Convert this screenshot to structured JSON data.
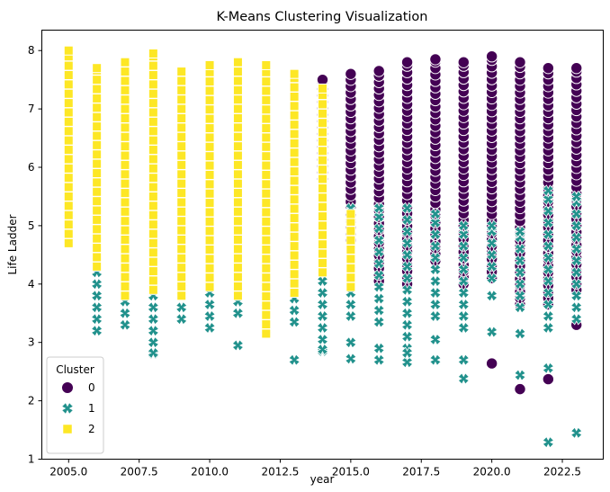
{
  "chart_data": {
    "type": "scatter",
    "title": "K-Means Clustering Visualization",
    "xlabel": "year",
    "ylabel": "Life Ladder",
    "xlim": [
      2004.05,
      2023.95
    ],
    "ylim": [
      1.0,
      8.35
    ],
    "xticks": [
      2005.0,
      2007.5,
      2010.0,
      2012.5,
      2015.0,
      2017.5,
      2020.0,
      2022.5
    ],
    "xtick_labels": [
      "2005.0",
      "2007.5",
      "2010.0",
      "2012.5",
      "2015.0",
      "2017.5",
      "2020.0",
      "2022.5"
    ],
    "yticks": [
      1,
      2,
      3,
      4,
      5,
      6,
      7,
      8
    ],
    "ytick_labels": [
      "1",
      "2",
      "3",
      "4",
      "5",
      "6",
      "7",
      "8"
    ],
    "grid": false,
    "legend": {
      "title": "Cluster",
      "placement": "lower-left"
    },
    "series": [
      {
        "name": "0",
        "marker": "circle",
        "color": "#440154",
        "ranges": [
          {
            "x": 2014,
            "min": 5.8,
            "max": 7.5
          },
          {
            "x": 2015,
            "min": 4.75,
            "max": 7.6
          },
          {
            "x": 2016,
            "min": 4.05,
            "max": 7.65
          },
          {
            "x": 2017,
            "min": 4.0,
            "max": 7.8
          },
          {
            "x": 2018,
            "min": 4.4,
            "max": 7.85
          },
          {
            "x": 2019,
            "min": 4.0,
            "max": 7.8
          },
          {
            "x": 2020,
            "min": 4.1,
            "max": 7.9
          },
          {
            "x": 2021,
            "min": 3.65,
            "max": 7.8
          },
          {
            "x": 2022,
            "min": 3.65,
            "max": 7.7
          },
          {
            "x": 2023,
            "min": 3.9,
            "max": 7.7
          }
        ],
        "extra_points": [
          {
            "x": 2020,
            "y": 2.64
          },
          {
            "x": 2021,
            "y": 2.2
          },
          {
            "x": 2022,
            "y": 2.37
          },
          {
            "x": 2023,
            "y": 3.3
          }
        ]
      },
      {
        "name": "1",
        "marker": "x",
        "color": "#21918c",
        "ranges": [
          {
            "x": 2005,
            "min": 5.2,
            "max": 5.3
          },
          {
            "x": 2006,
            "min": 3.2,
            "max": 5.3
          },
          {
            "x": 2007,
            "min": 3.3,
            "max": 6.0
          },
          {
            "x": 2008,
            "min": 2.8,
            "max": 5.25
          },
          {
            "x": 2009,
            "min": 3.4,
            "max": 5.3
          },
          {
            "x": 2010,
            "min": 3.25,
            "max": 5.7
          },
          {
            "x": 2011,
            "min": 3.5,
            "max": 5.1
          },
          {
            "x": 2012,
            "min": 3.2,
            "max": 5.2
          },
          {
            "x": 2013,
            "min": 3.35,
            "max": 5.3
          },
          {
            "x": 2014,
            "min": 2.85,
            "max": 5.3
          },
          {
            "x": 2015,
            "min": 3.45,
            "max": 5.3
          },
          {
            "x": 2016,
            "min": 3.35,
            "max": 5.3
          },
          {
            "x": 2017,
            "min": 2.9,
            "max": 5.3
          },
          {
            "x": 2018,
            "min": 3.45,
            "max": 5.2
          },
          {
            "x": 2019,
            "min": 3.25,
            "max": 5.0
          },
          {
            "x": 2020,
            "min": 4.1,
            "max": 5.0
          },
          {
            "x": 2021,
            "min": 3.6,
            "max": 4.9
          },
          {
            "x": 2022,
            "min": 3.25,
            "max": 5.6
          },
          {
            "x": 2023,
            "min": 3.4,
            "max": 5.5
          }
        ],
        "extra_points": [
          {
            "x": 2008,
            "y": 2.82
          },
          {
            "x": 2011,
            "y": 2.95
          },
          {
            "x": 2013,
            "y": 2.7
          },
          {
            "x": 2014,
            "y": 2.88
          },
          {
            "x": 2015,
            "y": 2.72
          },
          {
            "x": 2015,
            "y": 3.0
          },
          {
            "x": 2016,
            "y": 2.7
          },
          {
            "x": 2016,
            "y": 2.9
          },
          {
            "x": 2017,
            "y": 2.66
          },
          {
            "x": 2017,
            "y": 2.82
          },
          {
            "x": 2018,
            "y": 2.7
          },
          {
            "x": 2018,
            "y": 3.05
          },
          {
            "x": 2019,
            "y": 2.38
          },
          {
            "x": 2019,
            "y": 2.7
          },
          {
            "x": 2020,
            "y": 3.18
          },
          {
            "x": 2020,
            "y": 3.8
          },
          {
            "x": 2021,
            "y": 2.44
          },
          {
            "x": 2021,
            "y": 3.15
          },
          {
            "x": 2022,
            "y": 1.29
          },
          {
            "x": 2022,
            "y": 2.56
          },
          {
            "x": 2023,
            "y": 1.45
          }
        ]
      },
      {
        "name": "2",
        "marker": "square",
        "color": "#fde725",
        "ranges": [
          {
            "x": 2005,
            "min": 4.7,
            "max": 8.0
          },
          {
            "x": 2006,
            "min": 4.3,
            "max": 7.7
          },
          {
            "x": 2007,
            "min": 3.8,
            "max": 7.8
          },
          {
            "x": 2008,
            "min": 3.9,
            "max": 7.95
          },
          {
            "x": 2009,
            "min": 3.8,
            "max": 7.65
          },
          {
            "x": 2010,
            "min": 3.95,
            "max": 7.75
          },
          {
            "x": 2011,
            "min": 3.8,
            "max": 7.8
          },
          {
            "x": 2012,
            "min": 3.15,
            "max": 7.75
          },
          {
            "x": 2013,
            "min": 3.85,
            "max": 7.6
          },
          {
            "x": 2014,
            "min": 4.2,
            "max": 7.35
          },
          {
            "x": 2015,
            "min": 3.95,
            "max": 5.2
          }
        ],
        "extra_points": []
      }
    ]
  }
}
